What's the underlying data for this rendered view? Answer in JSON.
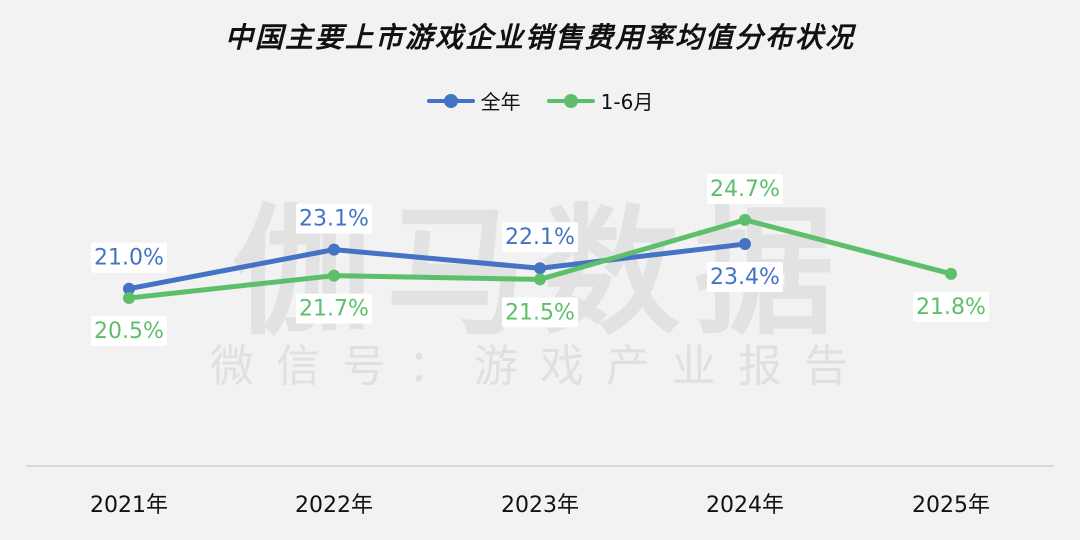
{
  "chart_data": {
    "type": "line",
    "title": "中国主要上市游戏企业销售费用率均值分布状况",
    "categories": [
      "2021年",
      "2022年",
      "2023年",
      "2024年",
      "2025年"
    ],
    "series": [
      {
        "name": "全年",
        "color": "#4472c4",
        "values": [
          21.0,
          23.1,
          22.1,
          23.4,
          null
        ],
        "labels": [
          "21.0%",
          "23.1%",
          "22.1%",
          "23.4%",
          null
        ]
      },
      {
        "name": "1-6月",
        "color": "#5dbf6b",
        "values": [
          20.5,
          21.7,
          21.5,
          24.7,
          21.8
        ],
        "labels": [
          "20.5%",
          "21.7%",
          "21.5%",
          "24.7%",
          "21.8%"
        ]
      }
    ],
    "xlabel": "",
    "ylabel": "",
    "grid": false,
    "legend_position": "top"
  },
  "watermark": {
    "main": "伽马数据",
    "sub": "微信号：游戏产业报告"
  }
}
